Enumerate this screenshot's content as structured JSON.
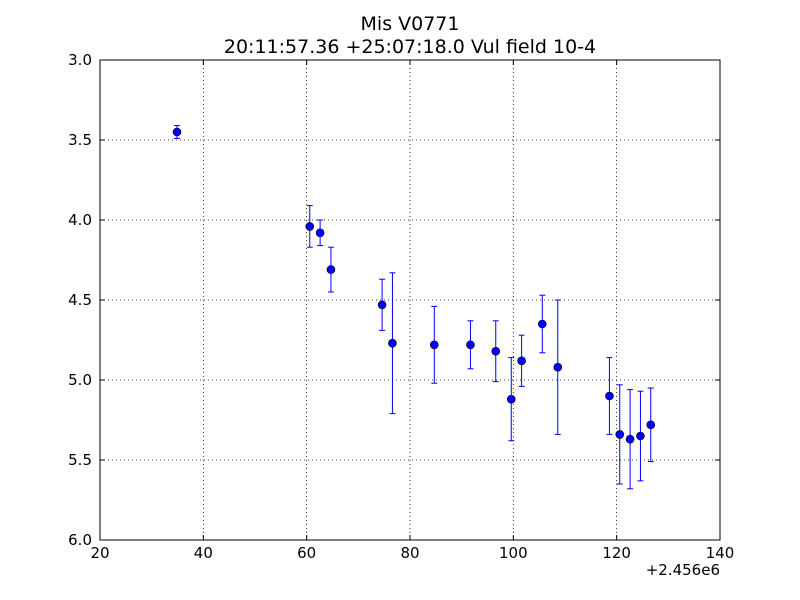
{
  "chart_data": {
    "type": "scatter",
    "title": "Mis V0771",
    "subtitle": "20:11:57.36 +25:07:18.0 Vul field 10-4",
    "xlabel": "",
    "ylabel": "",
    "x_offset_label": "+2.456e6",
    "xlim": [
      20,
      140
    ],
    "ylim": [
      3.0,
      6.0
    ],
    "y_inverted": true,
    "grid": true,
    "x_ticks": [
      "20",
      "40",
      "60",
      "80",
      "100",
      "120",
      "140"
    ],
    "y_ticks": [
      "3.0",
      "3.5",
      "4.0",
      "4.5",
      "5.0",
      "5.5",
      "6.0"
    ],
    "marker_color": "#0000ff",
    "points": [
      {
        "x": 34.9,
        "y": 3.45,
        "err": 0.04
      },
      {
        "x": 60.6,
        "y": 4.04,
        "err": 0.13
      },
      {
        "x": 62.6,
        "y": 4.08,
        "err": 0.08
      },
      {
        "x": 64.7,
        "y": 4.31,
        "err": 0.14
      },
      {
        "x": 74.6,
        "y": 4.53,
        "err": 0.16
      },
      {
        "x": 76.6,
        "y": 4.77,
        "err": 0.44
      },
      {
        "x": 84.7,
        "y": 4.78,
        "err": 0.24
      },
      {
        "x": 91.7,
        "y": 4.78,
        "err": 0.15
      },
      {
        "x": 96.6,
        "y": 4.82,
        "err": 0.19
      },
      {
        "x": 99.6,
        "y": 5.12,
        "err": 0.26
      },
      {
        "x": 101.6,
        "y": 4.88,
        "err": 0.16
      },
      {
        "x": 105.6,
        "y": 4.65,
        "err": 0.18
      },
      {
        "x": 108.6,
        "y": 4.92,
        "err": 0.42
      },
      {
        "x": 118.6,
        "y": 5.1,
        "err": 0.24
      },
      {
        "x": 120.6,
        "y": 5.34,
        "err": 0.31
      },
      {
        "x": 122.6,
        "y": 5.37,
        "err": 0.31
      },
      {
        "x": 124.6,
        "y": 5.35,
        "err": 0.28
      },
      {
        "x": 126.6,
        "y": 5.28,
        "err": 0.23
      }
    ]
  }
}
